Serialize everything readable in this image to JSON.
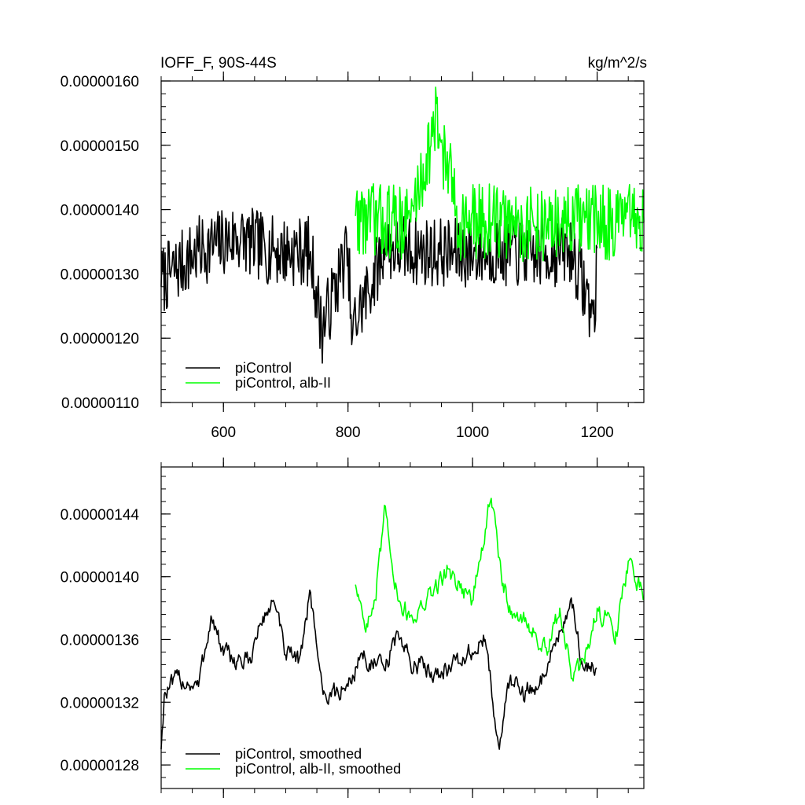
{
  "chart_data": [
    {
      "type": "line",
      "title": "IOFF_F, 90S-44S",
      "units": "kg/m^2/s",
      "xlim": [
        500,
        1275
      ],
      "ylim": [
        1.1e-06,
        1.6e-06
      ],
      "x_ticks": [
        600,
        800,
        1000,
        1200
      ],
      "x_tick_labels": [
        "600",
        "800",
        "1000",
        "1200"
      ],
      "y_ticks": [
        1.1e-06,
        1.2e-06,
        1.3e-06,
        1.4e-06,
        1.5e-06,
        1.6e-06
      ],
      "y_tick_labels": [
        "0.00000110",
        "0.00000120",
        "0.00000130",
        "0.00000140",
        "0.00000150",
        "0.00000160"
      ],
      "legend_position": "bottom-left",
      "series": [
        {
          "name": "piControl",
          "color": "#000000",
          "x_start": 500,
          "x_end": 1200,
          "mean": 1.338e-06,
          "noise": 5.5e-08,
          "x": [
            500,
            560,
            620,
            680,
            740,
            758,
            800,
            806,
            860,
            920,
            980,
            1040,
            1100,
            1160,
            1196,
            1200
          ],
          "y": [
            1.28e-06,
            1.335e-06,
            1.36e-06,
            1.335e-06,
            1.335e-06,
            1.19e-06,
            1.34e-06,
            1.19e-06,
            1.34e-06,
            1.335e-06,
            1.33e-06,
            1.335e-06,
            1.33e-06,
            1.335e-06,
            1.21e-06,
            1.34e-06
          ]
        },
        {
          "name": "piControl, alb-II",
          "color": "#00ff00",
          "x_start": 812,
          "x_end": 1275,
          "mean": 1.38e-06,
          "noise": 6e-08,
          "x": [
            812,
            860,
            900,
            942,
            980,
            1030,
            1080,
            1120,
            1180,
            1230,
            1275
          ],
          "y": [
            1.39e-06,
            1.38e-06,
            1.385e-06,
            1.565e-06,
            1.38e-06,
            1.38e-06,
            1.375e-06,
            1.375e-06,
            1.38e-06,
            1.38e-06,
            1.38e-06
          ]
        }
      ]
    },
    {
      "type": "line",
      "title": "",
      "xlim": [
        500,
        1275
      ],
      "ylim": [
        1.265e-06,
        1.47e-06
      ],
      "x_ticks": [
        600,
        800,
        1000,
        1200
      ],
      "x_tick_labels": [],
      "y_ticks": [
        1.28e-06,
        1.32e-06,
        1.36e-06,
        1.4e-06,
        1.44e-06
      ],
      "y_tick_labels": [
        "0.00000128",
        "0.00000132",
        "0.00000136",
        "0.00000140",
        "0.00000144"
      ],
      "legend_position": "bottom-left",
      "series": [
        {
          "name": "piControl, smoothed",
          "color": "#000000",
          "x_start": 500,
          "x_end": 1200,
          "noise": 1.2e-08,
          "x": [
            500,
            505,
            530,
            560,
            580,
            600,
            640,
            660,
            680,
            700,
            720,
            740,
            760,
            780,
            800,
            820,
            860,
            880,
            900,
            940,
            980,
            1020,
            1043,
            1060,
            1080,
            1100,
            1140,
            1160,
            1180,
            1200
          ],
          "y": [
            1.29e-06,
            1.325e-06,
            1.335e-06,
            1.33e-06,
            1.375e-06,
            1.35e-06,
            1.345e-06,
            1.37e-06,
            1.385e-06,
            1.35e-06,
            1.345e-06,
            1.39e-06,
            1.325e-06,
            1.325e-06,
            1.33e-06,
            1.35e-06,
            1.34e-06,
            1.365e-06,
            1.345e-06,
            1.34e-06,
            1.345e-06,
            1.36e-06,
            1.29e-06,
            1.335e-06,
            1.33e-06,
            1.325e-06,
            1.365e-06,
            1.38e-06,
            1.34e-06,
            1.345e-06
          ]
        },
        {
          "name": "piControl, alb-II, smoothed",
          "color": "#00ff00",
          "x_start": 812,
          "x_end": 1275,
          "noise": 1.2e-08,
          "x": [
            812,
            830,
            845,
            860,
            880,
            900,
            920,
            960,
            1000,
            1030,
            1050,
            1070,
            1090,
            1120,
            1140,
            1160,
            1180,
            1200,
            1230,
            1250,
            1275
          ],
          "y": [
            1.395e-06,
            1.37e-06,
            1.385e-06,
            1.445e-06,
            1.385e-06,
            1.375e-06,
            1.38e-06,
            1.405e-06,
            1.385e-06,
            1.45e-06,
            1.39e-06,
            1.375e-06,
            1.37e-06,
            1.35e-06,
            1.38e-06,
            1.335e-06,
            1.345e-06,
            1.38e-06,
            1.365e-06,
            1.41e-06,
            1.39e-06
          ]
        }
      ]
    }
  ]
}
